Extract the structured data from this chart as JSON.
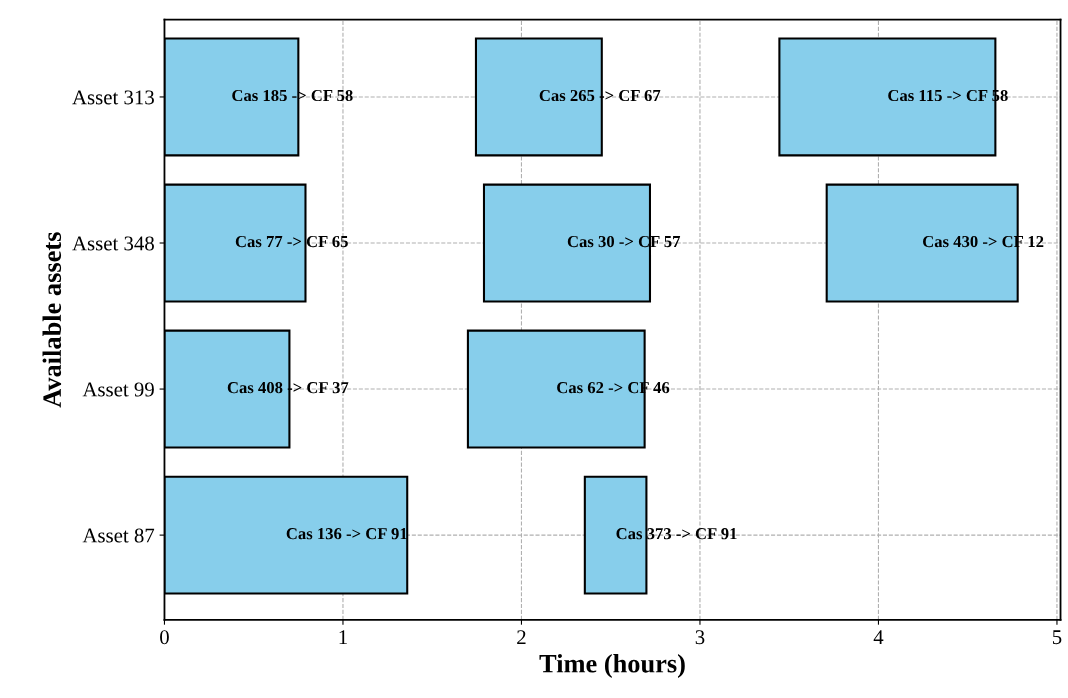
{
  "chart_data": {
    "type": "bar",
    "orientation": "horizontal",
    "xlabel": "Time (hours)",
    "ylabel": "Available assets",
    "categories": [
      "Asset 313",
      "Asset 348",
      "Asset 99",
      "Asset 87"
    ],
    "series": [
      {
        "color": "#87ceeb",
        "base": [
          0,
          0,
          0,
          0
        ],
        "values": [
          0.75,
          0.79,
          0.7,
          1.36
        ],
        "value_labels": [
          "Cas 185 -> CF 58",
          "Cas 77 -> CF 65",
          "Cas 408 -> CF 37",
          "Cas 136 -> CF 91"
        ]
      },
      {
        "color": "#87ceeb",
        "base": [
          1.745,
          1.79,
          1.7,
          2.355
        ],
        "values": [
          0.705,
          0.93,
          0.99,
          0.345
        ],
        "value_labels": [
          "Cas 265 -> CF 67",
          "Cas 30 -> CF 57",
          "Cas 62 -> CF 46",
          "Cas 373 -> CF 91"
        ]
      },
      {
        "color": "#87ceeb",
        "base": [
          3.445,
          3.71,
          null,
          null
        ],
        "values": [
          1.21,
          1.07,
          null,
          null
        ],
        "value_labels": [
          "Cas 115 -> CF 58",
          "Cas 430 -> CF 12",
          null,
          null
        ]
      }
    ],
    "xlim": [
      0,
      5.02
    ],
    "xticks": [
      0,
      1,
      2,
      3,
      4,
      5
    ],
    "grid": true,
    "line_style": "dashed"
  }
}
